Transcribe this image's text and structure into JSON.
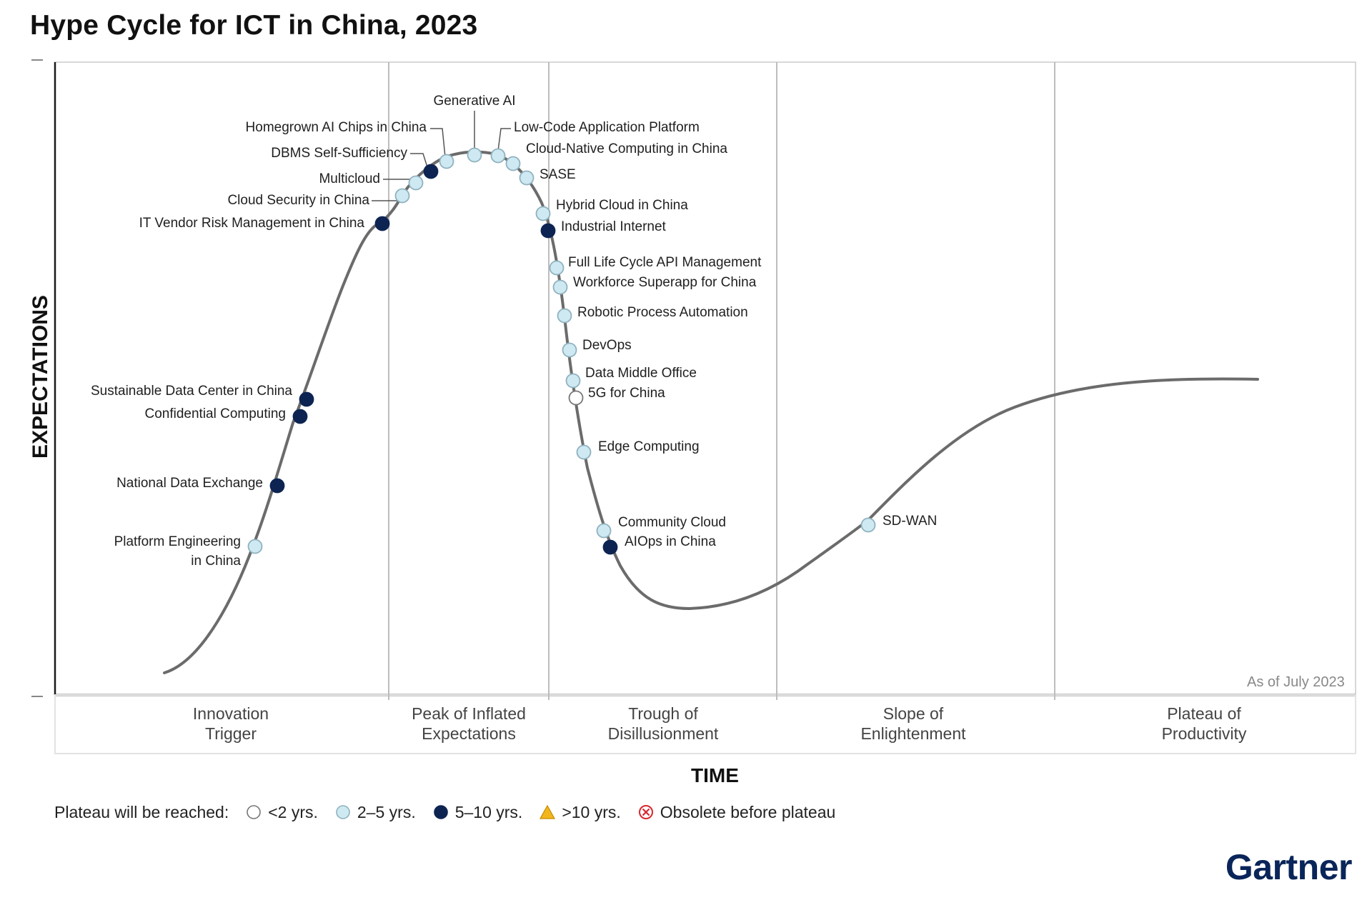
{
  "title": "Hype Cycle for ICT in China, 2023",
  "y_axis_label": "EXPECTATIONS",
  "x_axis_label": "TIME",
  "as_of": "As of July 2023",
  "phases": [
    "Innovation\nTrigger",
    "Peak of Inflated\nExpectations",
    "Trough of\nDisillusionment",
    "Slope of\nEnlightenment",
    "Plateau of\nProductivity"
  ],
  "legend": {
    "prefix": "Plateau will be reached:",
    "items": [
      {
        "key": "lt2",
        "label": "<2 yrs."
      },
      {
        "key": "2to5",
        "label": "2–5 yrs."
      },
      {
        "key": "5to10",
        "label": "5–10 yrs."
      },
      {
        "key": "gt10",
        "label": ">10 yrs."
      },
      {
        "key": "obsolete",
        "label": "Obsolete before plateau"
      }
    ]
  },
  "colors": {
    "lt2": "#ffffff",
    "2to5": "#cfe9f3",
    "5to10": "#0d2452",
    "gt10": "#f2b51c",
    "obsolete": "#d9262e",
    "curve": "#6b6b6b"
  },
  "technologies": [
    {
      "name": "Platform Engineering\nin China",
      "plateau": "2to5"
    },
    {
      "name": "National Data Exchange",
      "plateau": "5to10"
    },
    {
      "name": "Confidential Computing",
      "plateau": "5to10"
    },
    {
      "name": "Sustainable Data Center in China",
      "plateau": "5to10"
    },
    {
      "name": "IT Vendor Risk Management in China",
      "plateau": "5to10"
    },
    {
      "name": "Cloud Security in China",
      "plateau": "2to5"
    },
    {
      "name": "Multicloud",
      "plateau": "2to5"
    },
    {
      "name": "DBMS Self-Sufficiency",
      "plateau": "5to10"
    },
    {
      "name": "Homegrown AI Chips in China",
      "plateau": "2to5"
    },
    {
      "name": "Generative AI",
      "plateau": "2to5"
    },
    {
      "name": "Low-Code Application Platform",
      "plateau": "2to5"
    },
    {
      "name": "Cloud-Native Computing in China",
      "plateau": "2to5"
    },
    {
      "name": "SASE",
      "plateau": "2to5"
    },
    {
      "name": "Hybrid Cloud in China",
      "plateau": "2to5"
    },
    {
      "name": "Industrial Internet",
      "plateau": "5to10"
    },
    {
      "name": "Full Life Cycle API Management",
      "plateau": "2to5"
    },
    {
      "name": "Workforce Superapp for China",
      "plateau": "2to5"
    },
    {
      "name": "Robotic Process Automation",
      "plateau": "2to5"
    },
    {
      "name": "DevOps",
      "plateau": "2to5"
    },
    {
      "name": "Data Middle Office",
      "plateau": "2to5"
    },
    {
      "name": "5G for China",
      "plateau": "lt2"
    },
    {
      "name": "Edge Computing",
      "plateau": "2to5"
    },
    {
      "name": "Community Cloud",
      "plateau": "2to5"
    },
    {
      "name": "AIOps in China",
      "plateau": "5to10"
    },
    {
      "name": "SD-WAN",
      "plateau": "2to5"
    }
  ],
  "brand": "Gartner"
}
